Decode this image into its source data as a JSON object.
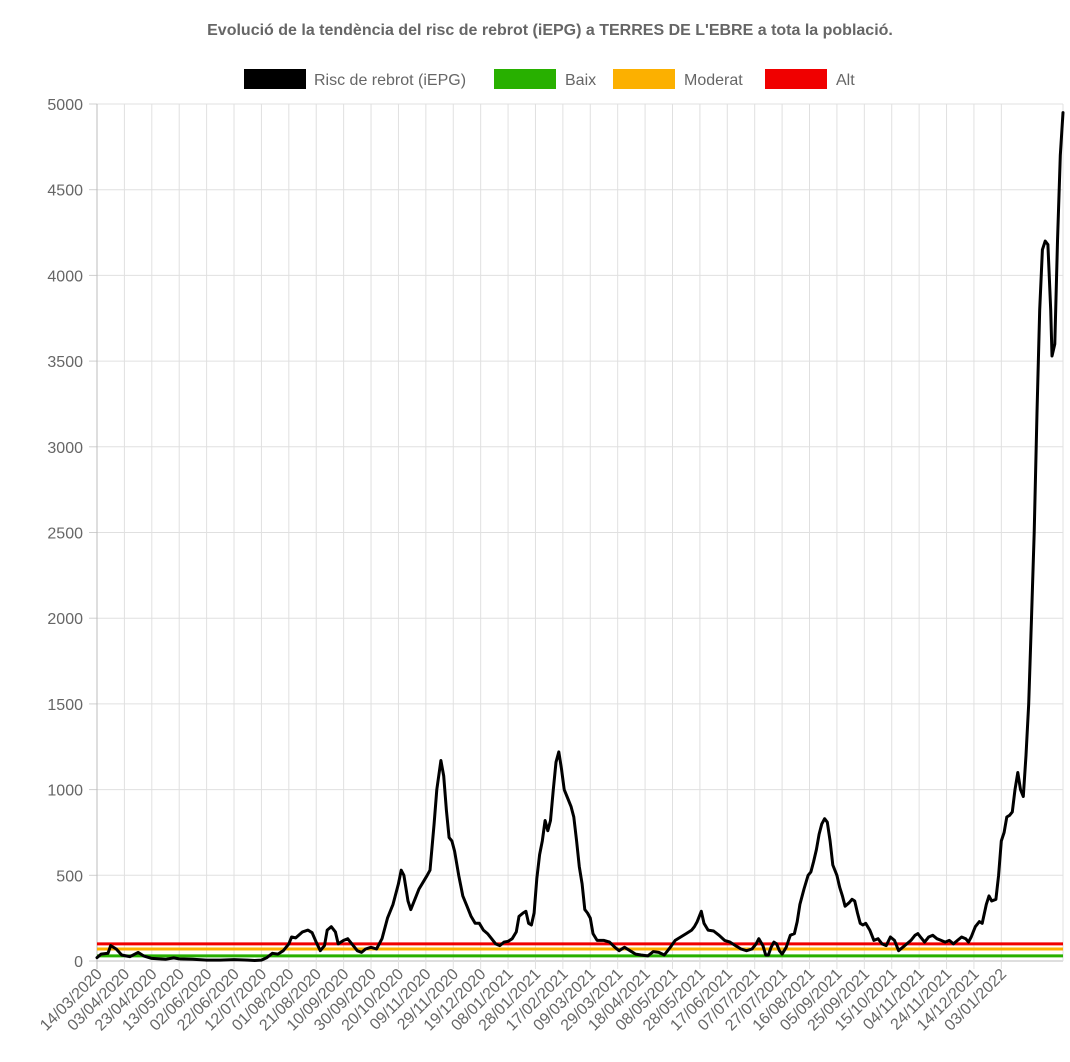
{
  "chart_data": {
    "type": "line",
    "title": "Evolució de la tendència del risc de rebrot (iEPG) a TERRES DE L'EBRE a tota la població.",
    "xlabel": "",
    "ylabel": "",
    "ylim": [
      0,
      5000
    ],
    "y_ticks": [
      "0",
      "500",
      "1000",
      "1500",
      "2000",
      "2500",
      "3000",
      "3500",
      "4000",
      "4500",
      "5000"
    ],
    "x_tick_labels": [
      "14/03/2020",
      "03/04/2020",
      "23/04/2020",
      "13/05/2020",
      "02/06/2020",
      "22/06/2020",
      "12/07/2020",
      "01/08/2020",
      "21/08/2020",
      "10/09/2020",
      "30/09/2020",
      "20/10/2020",
      "09/11/2020",
      "29/11/2020",
      "19/12/2020",
      "08/01/2021",
      "28/01/2021",
      "17/02/2021",
      "09/03/2021",
      "29/03/2021",
      "18/04/2021",
      "08/05/2021",
      "28/05/2021",
      "17/06/2021",
      "07/07/2021",
      "27/07/2021",
      "16/08/2021",
      "05/09/2021",
      "25/09/2021",
      "15/10/2021",
      "04/11/2021",
      "24/11/2021",
      "14/12/2021",
      "03/01/2022"
    ],
    "grid": true,
    "legend_position": "top",
    "series": [
      {
        "name": "Risc de rebrot (iEPG)",
        "color": "#000000",
        "points": [
          [
            0,
            20
          ],
          [
            3,
            40
          ],
          [
            8,
            45
          ],
          [
            10,
            90
          ],
          [
            14,
            70
          ],
          [
            18,
            35
          ],
          [
            24,
            25
          ],
          [
            30,
            50
          ],
          [
            34,
            30
          ],
          [
            40,
            15
          ],
          [
            50,
            10
          ],
          [
            56,
            18
          ],
          [
            60,
            12
          ],
          [
            70,
            10
          ],
          [
            80,
            5
          ],
          [
            90,
            5
          ],
          [
            100,
            8
          ],
          [
            110,
            5
          ],
          [
            115,
            3
          ],
          [
            120,
            5
          ],
          [
            124,
            20
          ],
          [
            128,
            45
          ],
          [
            132,
            40
          ],
          [
            136,
            60
          ],
          [
            140,
            100
          ],
          [
            142,
            140
          ],
          [
            145,
            135
          ],
          [
            150,
            170
          ],
          [
            154,
            180
          ],
          [
            157,
            165
          ],
          [
            160,
            110
          ],
          [
            163,
            60
          ],
          [
            166,
            90
          ],
          [
            168,
            180
          ],
          [
            171,
            200
          ],
          [
            174,
            170
          ],
          [
            176,
            100
          ],
          [
            180,
            120
          ],
          [
            183,
            130
          ],
          [
            186,
            100
          ],
          [
            190,
            60
          ],
          [
            193,
            50
          ],
          [
            196,
            70
          ],
          [
            200,
            80
          ],
          [
            204,
            70
          ],
          [
            208,
            130
          ],
          [
            212,
            250
          ],
          [
            216,
            330
          ],
          [
            220,
            450
          ],
          [
            222,
            530
          ],
          [
            224,
            500
          ],
          [
            227,
            350
          ],
          [
            229,
            300
          ],
          [
            232,
            360
          ],
          [
            235,
            420
          ],
          [
            238,
            460
          ],
          [
            241,
            500
          ],
          [
            243,
            530
          ],
          [
            246,
            800
          ],
          [
            248,
            1000
          ],
          [
            251,
            1170
          ],
          [
            253,
            1080
          ],
          [
            255,
            880
          ],
          [
            257,
            720
          ],
          [
            259,
            700
          ],
          [
            261,
            640
          ],
          [
            264,
            500
          ],
          [
            267,
            380
          ],
          [
            270,
            320
          ],
          [
            273,
            260
          ],
          [
            276,
            220
          ],
          [
            279,
            220
          ],
          [
            282,
            180
          ],
          [
            285,
            160
          ],
          [
            288,
            130
          ],
          [
            291,
            100
          ],
          [
            294,
            90
          ],
          [
            297,
            110
          ],
          [
            300,
            115
          ],
          [
            303,
            130
          ],
          [
            306,
            170
          ],
          [
            308,
            260
          ],
          [
            311,
            280
          ],
          [
            313,
            290
          ],
          [
            315,
            220
          ],
          [
            317,
            210
          ],
          [
            319,
            280
          ],
          [
            321,
            480
          ],
          [
            323,
            620
          ],
          [
            325,
            700
          ],
          [
            327,
            820
          ],
          [
            329,
            760
          ],
          [
            331,
            820
          ],
          [
            333,
            1000
          ],
          [
            335,
            1160
          ],
          [
            337,
            1220
          ],
          [
            339,
            1120
          ],
          [
            341,
            1000
          ],
          [
            343,
            960
          ],
          [
            346,
            900
          ],
          [
            348,
            840
          ],
          [
            350,
            700
          ],
          [
            352,
            550
          ],
          [
            354,
            450
          ],
          [
            356,
            300
          ],
          [
            358,
            280
          ],
          [
            360,
            250
          ],
          [
            362,
            160
          ],
          [
            365,
            120
          ],
          [
            370,
            120
          ],
          [
            374,
            110
          ],
          [
            378,
            80
          ],
          [
            381,
            60
          ],
          [
            385,
            80
          ],
          [
            389,
            60
          ],
          [
            393,
            40
          ],
          [
            397,
            35
          ],
          [
            402,
            30
          ],
          [
            406,
            55
          ],
          [
            410,
            50
          ],
          [
            414,
            35
          ],
          [
            418,
            75
          ],
          [
            422,
            120
          ],
          [
            426,
            140
          ],
          [
            430,
            160
          ],
          [
            434,
            180
          ],
          [
            436,
            200
          ],
          [
            438,
            230
          ],
          [
            441,
            290
          ],
          [
            443,
            220
          ],
          [
            446,
            180
          ],
          [
            450,
            175
          ],
          [
            454,
            150
          ],
          [
            458,
            120
          ],
          [
            462,
            110
          ],
          [
            466,
            90
          ],
          [
            470,
            70
          ],
          [
            474,
            60
          ],
          [
            478,
            70
          ],
          [
            481,
            100
          ],
          [
            483,
            130
          ],
          [
            486,
            90
          ],
          [
            488,
            35
          ],
          [
            490,
            35
          ],
          [
            492,
            80
          ],
          [
            494,
            110
          ],
          [
            496,
            100
          ],
          [
            498,
            60
          ],
          [
            500,
            40
          ],
          [
            503,
            80
          ],
          [
            506,
            150
          ],
          [
            509,
            160
          ],
          [
            511,
            230
          ],
          [
            513,
            330
          ],
          [
            516,
            420
          ],
          [
            519,
            500
          ],
          [
            521,
            520
          ],
          [
            523,
            580
          ],
          [
            525,
            650
          ],
          [
            527,
            740
          ],
          [
            529,
            800
          ],
          [
            531,
            830
          ],
          [
            533,
            810
          ],
          [
            535,
            700
          ],
          [
            537,
            560
          ],
          [
            540,
            500
          ],
          [
            542,
            430
          ],
          [
            544,
            380
          ],
          [
            546,
            320
          ],
          [
            549,
            340
          ],
          [
            551,
            360
          ],
          [
            553,
            350
          ],
          [
            555,
            280
          ],
          [
            557,
            220
          ],
          [
            559,
            210
          ],
          [
            561,
            220
          ],
          [
            564,
            180
          ],
          [
            567,
            120
          ],
          [
            570,
            130
          ],
          [
            573,
            100
          ],
          [
            576,
            90
          ],
          [
            579,
            140
          ],
          [
            582,
            120
          ],
          [
            585,
            60
          ],
          [
            588,
            80
          ],
          [
            591,
            100
          ],
          [
            594,
            120
          ],
          [
            597,
            150
          ],
          [
            599,
            160
          ],
          [
            601,
            140
          ],
          [
            604,
            110
          ],
          [
            607,
            140
          ],
          [
            610,
            150
          ],
          [
            613,
            130
          ],
          [
            616,
            120
          ],
          [
            619,
            110
          ],
          [
            622,
            120
          ],
          [
            625,
            100
          ],
          [
            628,
            120
          ],
          [
            631,
            140
          ],
          [
            634,
            130
          ],
          [
            636,
            110
          ],
          [
            638,
            140
          ],
          [
            641,
            200
          ],
          [
            644,
            230
          ],
          [
            646,
            220
          ],
          [
            649,
            330
          ],
          [
            651,
            380
          ],
          [
            653,
            350
          ],
          [
            656,
            360
          ],
          [
            658,
            500
          ],
          [
            660,
            700
          ],
          [
            662,
            750
          ],
          [
            664,
            840
          ],
          [
            666,
            850
          ],
          [
            668,
            870
          ],
          [
            670,
            1000
          ],
          [
            672,
            1100
          ],
          [
            674,
            1000
          ],
          [
            676,
            960
          ],
          [
            678,
            1200
          ],
          [
            680,
            1500
          ],
          [
            682,
            2000
          ],
          [
            684,
            2500
          ],
          [
            686,
            3200
          ],
          [
            688,
            3800
          ],
          [
            690,
            4150
          ],
          [
            692,
            4200
          ],
          [
            694,
            4180
          ],
          [
            696,
            3800
          ],
          [
            697,
            3530
          ],
          [
            699,
            3600
          ],
          [
            701,
            4200
          ],
          [
            703,
            4700
          ],
          [
            705,
            4950
          ]
        ]
      },
      {
        "name": "Baix",
        "color": "#28b000",
        "level": 30
      },
      {
        "name": "Moderat",
        "color": "#fcb000",
        "level": 70
      },
      {
        "name": "Alt",
        "color": "#f00000",
        "level": 100
      }
    ]
  }
}
